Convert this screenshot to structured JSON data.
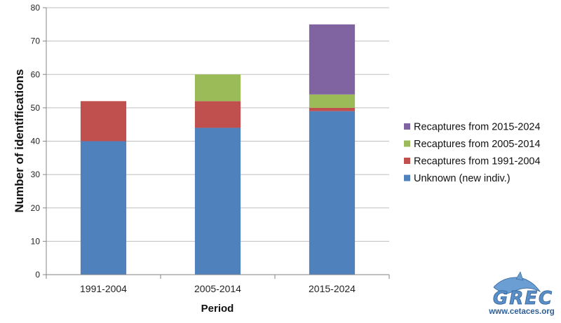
{
  "chart_data": {
    "type": "bar",
    "stacked": true,
    "categories": [
      "1991-2004",
      "2005-2014",
      "2015-2024"
    ],
    "series": [
      {
        "name": "Unknown (new indiv.)",
        "color": "#4f81bd",
        "values": [
          40,
          44,
          49
        ]
      },
      {
        "name": "Recaptures from 1991-2004",
        "color": "#c0504d",
        "values": [
          12,
          8,
          1
        ]
      },
      {
        "name": "Recaptures from 2005-2014",
        "color": "#9bbb59",
        "values": [
          0,
          8,
          4
        ]
      },
      {
        "name": "Recaptures from 2015-2024",
        "color": "#8064a2",
        "values": [
          0,
          0,
          21
        ]
      }
    ],
    "xlabel": "Period",
    "ylabel": "Number of identifications",
    "ylim": [
      0,
      80
    ],
    "yticks": [
      0,
      10,
      20,
      30,
      40,
      50,
      60,
      70,
      80
    ],
    "grid": true,
    "legend_position": "right",
    "legend_order": "reversed"
  },
  "logo": {
    "name": "GREC",
    "url": "www.cetaces.org",
    "icon": "dolphin-icon"
  }
}
